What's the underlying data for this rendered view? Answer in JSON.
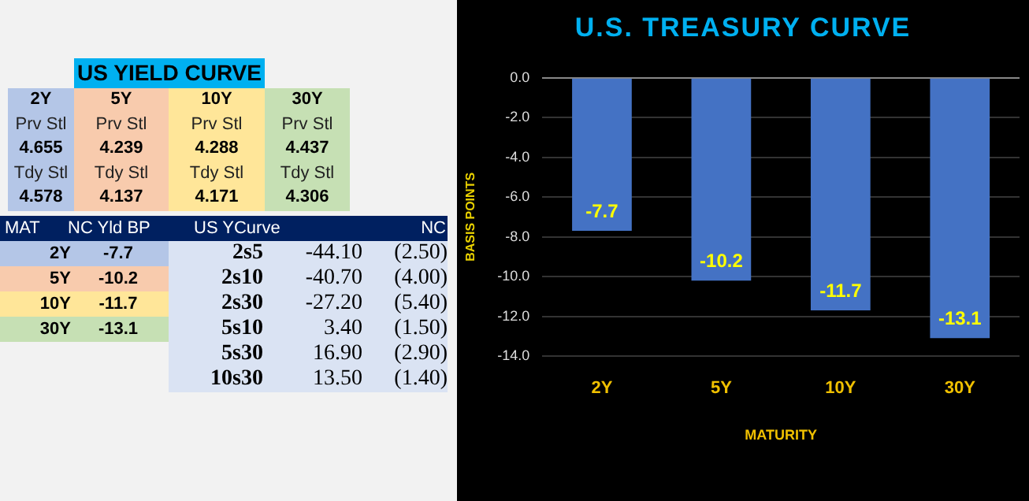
{
  "chart_data": [
    {
      "type": "other",
      "title": "US YIELD CURVE",
      "annotations": [
        "2Y",
        "5Y",
        "10Y",
        "30Y",
        "Prv Stl",
        "Prv Stl",
        "Prv Stl",
        "Prv Stl",
        "4.655",
        "4.239",
        "4.288",
        "4.437",
        "Tdy Stl",
        "Tdy Stl",
        "Tdy Stl",
        "Tdy Stl",
        "4.578",
        "4.137",
        "4.171",
        "4.306",
        "MAT",
        "NC Yld  BP",
        "US YCurve",
        "NC",
        "2Y",
        "-7.7",
        "2s5",
        "-44.10",
        "(2.50)",
        "5Y",
        "-10.2",
        "2s10",
        "-40.70",
        "(4.00)",
        "10Y",
        "-11.7",
        "2s30",
        "-27.20",
        "(5.40)",
        "30Y",
        "-13.1",
        "5s10",
        "3.40",
        "(1.50)",
        "5s30",
        "16.90",
        "(2.90)",
        "10s30",
        "13.50",
        "(1.40)"
      ]
    },
    {
      "type": "bar",
      "title": "U.S. TREASURY CURVE",
      "xlabel": "MATURITY",
      "ylabel": "BASIS POINTS",
      "categories": [
        "2Y",
        "5Y",
        "10Y",
        "30Y"
      ],
      "values": [
        -7.7,
        -10.2,
        -11.7,
        -13.1
      ],
      "color": "#4472c4",
      "ylim": [
        -14,
        0
      ],
      "yticks": [
        {
          "value": 0,
          "label": "0.0"
        },
        {
          "value": -2,
          "label": "-2.0"
        },
        {
          "value": -4,
          "label": "-4.0"
        },
        {
          "value": -6,
          "label": "-6.0"
        },
        {
          "value": -8,
          "label": "-8.0"
        },
        {
          "value": -10,
          "label": "-10.0"
        },
        {
          "value": -12,
          "label": "-12.0"
        },
        {
          "value": -14,
          "label": "-14.0"
        }
      ],
      "grid": "y",
      "legend": false,
      "data_labels": true
    }
  ]
}
